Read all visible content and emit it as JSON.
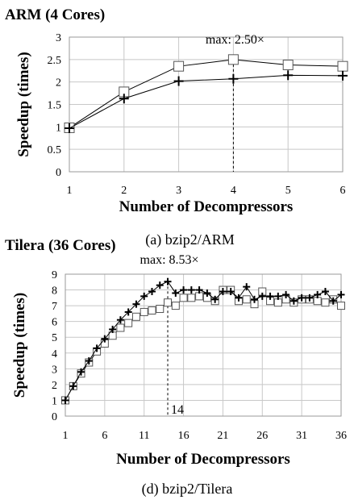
{
  "chart_data": [
    {
      "type": "line",
      "title": "ARM (4 Cores)",
      "xlabel": "Number of Decompressors",
      "ylabel": "Speedup (times)",
      "caption": "(a) bzip2/ARM",
      "x": [
        1,
        2,
        3,
        4,
        5,
        6
      ],
      "xlim": [
        1,
        6
      ],
      "ylim": [
        0,
        3
      ],
      "xticks": [
        1,
        2,
        3,
        4,
        5,
        6
      ],
      "xtick_labels": [
        "1",
        "2",
        "3",
        "4",
        "5",
        "6"
      ],
      "yticks": [
        0,
        0.5,
        1,
        1.5,
        2,
        2.5,
        3
      ],
      "ytick_labels": [
        "0",
        "0.5",
        "1",
        "1.5",
        "2",
        "2.5",
        "3"
      ],
      "grid": true,
      "series": [
        {
          "marker": "square",
          "values": [
            0.98,
            1.78,
            2.35,
            2.5,
            2.38,
            2.35
          ]
        },
        {
          "marker": "plus",
          "values": [
            0.97,
            1.63,
            2.02,
            2.07,
            2.15,
            2.14
          ]
        }
      ],
      "annotation": {
        "text": "max: 2.50×",
        "x": 4,
        "y": 2.5
      }
    },
    {
      "type": "line",
      "title": "Tilera (36 Cores)",
      "xlabel": "Number of Decompressors",
      "ylabel": "Speedup (times)",
      "caption": "(d) bzip2/Tilera",
      "x": [
        1,
        2,
        3,
        4,
        5,
        6,
        7,
        8,
        9,
        10,
        11,
        12,
        13,
        14,
        15,
        16,
        17,
        18,
        19,
        20,
        21,
        22,
        23,
        24,
        25,
        26,
        27,
        28,
        29,
        30,
        31,
        32,
        33,
        34,
        35,
        36
      ],
      "xlim": [
        1,
        36
      ],
      "ylim": [
        0,
        9
      ],
      "xticks": [
        1,
        6,
        11,
        16,
        21,
        26,
        31,
        36
      ],
      "xtick_labels": [
        "1",
        "6",
        "11",
        "16",
        "21",
        "26",
        "31",
        "36"
      ],
      "yticks": [
        0,
        1,
        2,
        3,
        4,
        5,
        6,
        7,
        8,
        9
      ],
      "ytick_labels": [
        "0",
        "1",
        "2",
        "3",
        "4",
        "5",
        "6",
        "7",
        "8",
        "9"
      ],
      "grid": true,
      "series": [
        {
          "marker": "square",
          "values": [
            1.0,
            1.9,
            2.7,
            3.4,
            4.1,
            4.6,
            5.1,
            5.6,
            5.9,
            6.3,
            6.6,
            6.7,
            6.8,
            7.2,
            7.0,
            7.5,
            7.5,
            7.6,
            7.5,
            7.3,
            8.0,
            8.0,
            7.3,
            7.4,
            7.1,
            7.9,
            7.3,
            7.2,
            7.4,
            7.2,
            7.4,
            7.4,
            7.3,
            7.2,
            7.4,
            7.0
          ]
        },
        {
          "marker": "plus",
          "values": [
            1.0,
            1.9,
            2.8,
            3.5,
            4.3,
            4.9,
            5.5,
            6.1,
            6.6,
            7.1,
            7.6,
            7.9,
            8.3,
            8.53,
            7.8,
            8.0,
            8.0,
            8.0,
            7.8,
            7.4,
            7.9,
            7.9,
            7.5,
            8.2,
            7.4,
            7.6,
            7.6,
            7.6,
            7.7,
            7.3,
            7.5,
            7.5,
            7.7,
            7.9,
            7.3,
            7.7
          ]
        }
      ],
      "annotation": {
        "text": "max: 8.53×",
        "x": 14,
        "y": 8.53,
        "label": "14"
      }
    }
  ]
}
